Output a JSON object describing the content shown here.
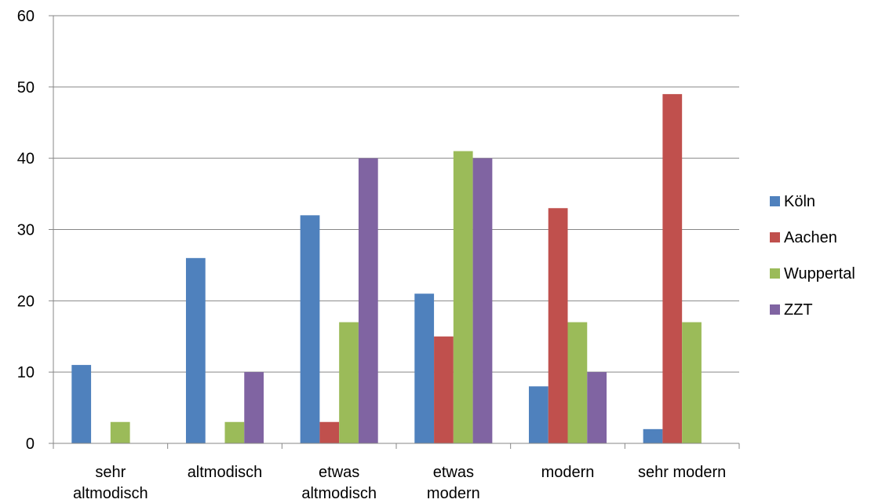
{
  "chart_data": {
    "type": "bar",
    "categories": [
      [
        "sehr",
        "altmodisch"
      ],
      [
        "altmodisch"
      ],
      [
        "etwas",
        "altmodisch"
      ],
      [
        "etwas",
        "modern"
      ],
      [
        "modern"
      ],
      [
        "sehr modern"
      ]
    ],
    "series": [
      {
        "name": "Köln",
        "color": "#4F81BD",
        "values": [
          11,
          26,
          32,
          21,
          8,
          2
        ]
      },
      {
        "name": "Aachen",
        "color": "#C0504D",
        "values": [
          null,
          null,
          3,
          15,
          33,
          49
        ]
      },
      {
        "name": "Wuppertal",
        "color": "#9BBB59",
        "values": [
          3,
          3,
          17,
          41,
          17,
          17
        ]
      },
      {
        "name": "ZZT",
        "color": "#8064A2",
        "values": [
          null,
          10,
          40,
          40,
          10,
          null
        ]
      }
    ],
    "ylim": [
      0,
      60
    ],
    "yticks": [
      0,
      10,
      20,
      30,
      40,
      50,
      60
    ],
    "grid": true,
    "legend_position": "right",
    "title": "",
    "xlabel": "",
    "ylabel": ""
  }
}
